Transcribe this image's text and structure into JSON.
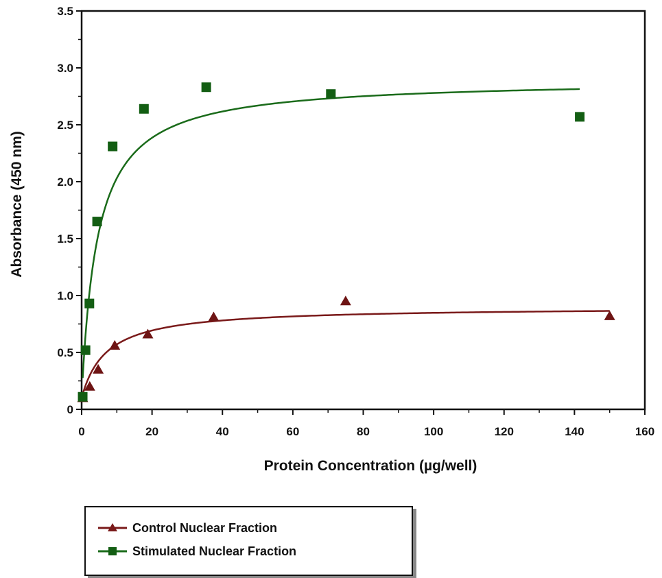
{
  "chart_data": {
    "type": "scatter",
    "title": "",
    "xlabel": "Protein Concentration (µg/well)",
    "ylabel": "Absorbance (450 nm)",
    "xlim": [
      0,
      160
    ],
    "ylim": [
      0,
      3.5
    ],
    "xticks": [
      "0",
      "20",
      "40",
      "60",
      "80",
      "100",
      "120",
      "140",
      "160"
    ],
    "yticks": [
      "0",
      "0.5",
      "1.0",
      "1.5",
      "2.0",
      "2.5",
      "3.0",
      "3.5"
    ],
    "grid": false,
    "legend_placement": "bottom-left, below plot",
    "series": [
      {
        "name": "Control Nuclear Fraction",
        "marker": "triangle",
        "color": "#7a1a1a",
        "x": [
          0.3,
          2.3,
          4.7,
          9.4,
          18.8,
          37.5,
          75,
          150
        ],
        "y": [
          0.1,
          0.2,
          0.35,
          0.56,
          0.66,
          0.81,
          0.95,
          0.82
        ],
        "fit": "saturation curve"
      },
      {
        "name": "Stimulated Nuclear Fraction",
        "marker": "square",
        "color": "#1a6b1a",
        "x": [
          0.3,
          1.1,
          2.2,
          4.4,
          8.8,
          17.7,
          35.4,
          70.8,
          141.5
        ],
        "y": [
          0.11,
          0.52,
          0.93,
          1.65,
          2.31,
          2.64,
          2.83,
          2.77,
          2.57
        ],
        "fit": "saturation curve"
      }
    ]
  },
  "legend": {
    "items": [
      {
        "label": "Control Nuclear Fraction"
      },
      {
        "label": "Stimulated Nuclear Fraction"
      }
    ]
  }
}
